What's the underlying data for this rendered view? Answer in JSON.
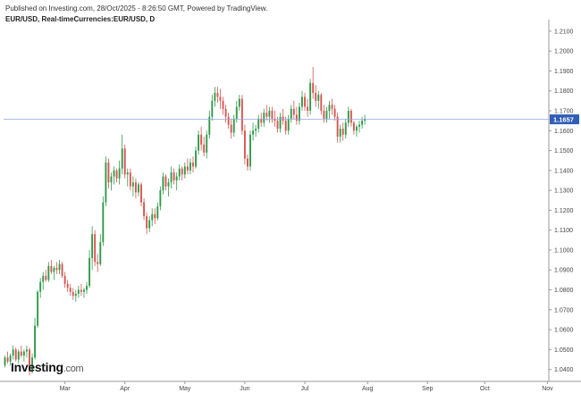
{
  "header": {
    "published": "Published on Investing.com, 28/Oct/2025 - 8:26:50 GMT, Powered by TradingView.",
    "symbol": "EUR/USD, Real-timeCurrencies:EUR/USD, D"
  },
  "logo": {
    "main": "Investing",
    "suffix": ".com"
  },
  "colors": {
    "up": "#2e9a4a",
    "down": "#d9534f",
    "price_line": "#8fa8d8",
    "price_tag": "#2f5db8",
    "axis": "#999999"
  },
  "chart_data": {
    "type": "candlestick",
    "y_ticks": [
      "1.2100",
      "1.2000",
      "1.1900",
      "1.1800",
      "1.1700",
      "1.1600",
      "1.1500",
      "1.1400",
      "1.1300",
      "1.1200",
      "1.1100",
      "1.1000",
      "1.0900",
      "1.0800",
      "1.0700",
      "1.0600",
      "1.0500",
      "1.0400"
    ],
    "ylim": [
      1.034,
      1.214
    ],
    "x_ticks": [
      "Mar",
      "Apr",
      "May",
      "Jun",
      "Jul",
      "Aug",
      "Sep",
      "Oct",
      "Nov"
    ],
    "x_tick_index": [
      22,
      44,
      66,
      88,
      110,
      133,
      155,
      176,
      199
    ],
    "current_price": "1.1657",
    "current_value": 1.1657,
    "candles": [
      [
        1.042,
        1.047,
        1.041,
        1.046
      ],
      [
        1.046,
        1.049,
        1.043,
        1.044
      ],
      [
        1.044,
        1.048,
        1.042,
        1.047
      ],
      [
        1.047,
        1.052,
        1.045,
        1.05
      ],
      [
        1.05,
        1.051,
        1.044,
        1.045
      ],
      [
        1.045,
        1.05,
        1.043,
        1.049
      ],
      [
        1.049,
        1.052,
        1.046,
        1.047
      ],
      [
        1.047,
        1.05,
        1.044,
        1.049
      ],
      [
        1.049,
        1.052,
        1.046,
        1.05
      ],
      [
        1.05,
        1.051,
        1.037,
        1.039
      ],
      [
        1.039,
        1.048,
        1.038,
        1.046
      ],
      [
        1.046,
        1.066,
        1.045,
        1.062
      ],
      [
        1.062,
        1.08,
        1.061,
        1.079
      ],
      [
        1.079,
        1.086,
        1.076,
        1.084
      ],
      [
        1.084,
        1.089,
        1.08,
        1.087
      ],
      [
        1.087,
        1.09,
        1.084,
        1.085
      ],
      [
        1.085,
        1.094,
        1.084,
        1.092
      ],
      [
        1.092,
        1.095,
        1.088,
        1.089
      ],
      [
        1.089,
        1.092,
        1.085,
        1.091
      ],
      [
        1.091,
        1.094,
        1.088,
        1.09
      ],
      [
        1.09,
        1.095,
        1.088,
        1.093
      ],
      [
        1.093,
        1.094,
        1.086,
        1.087
      ],
      [
        1.087,
        1.089,
        1.081,
        1.083
      ],
      [
        1.083,
        1.085,
        1.079,
        1.081
      ],
      [
        1.081,
        1.083,
        1.077,
        1.079
      ],
      [
        1.079,
        1.081,
        1.075,
        1.077
      ],
      [
        1.077,
        1.08,
        1.074,
        1.078
      ],
      [
        1.078,
        1.082,
        1.076,
        1.08
      ],
      [
        1.08,
        1.083,
        1.077,
        1.079
      ],
      [
        1.079,
        1.081,
        1.076,
        1.08
      ],
      [
        1.08,
        1.084,
        1.078,
        1.082
      ],
      [
        1.082,
        1.1,
        1.081,
        1.096
      ],
      [
        1.096,
        1.112,
        1.09,
        1.108
      ],
      [
        1.108,
        1.11,
        1.092,
        1.094
      ],
      [
        1.094,
        1.098,
        1.089,
        1.093
      ],
      [
        1.093,
        1.108,
        1.092,
        1.104
      ],
      [
        1.104,
        1.127,
        1.102,
        1.124
      ],
      [
        1.124,
        1.147,
        1.122,
        1.144
      ],
      [
        1.144,
        1.146,
        1.131,
        1.134
      ],
      [
        1.134,
        1.139,
        1.13,
        1.137
      ],
      [
        1.137,
        1.142,
        1.133,
        1.14
      ],
      [
        1.14,
        1.141,
        1.134,
        1.136
      ],
      [
        1.136,
        1.145,
        1.133,
        1.141
      ],
      [
        1.141,
        1.158,
        1.138,
        1.151
      ],
      [
        1.151,
        1.153,
        1.136,
        1.138
      ],
      [
        1.138,
        1.141,
        1.132,
        1.139
      ],
      [
        1.139,
        1.141,
        1.13,
        1.132
      ],
      [
        1.132,
        1.137,
        1.127,
        1.134
      ],
      [
        1.134,
        1.136,
        1.126,
        1.129
      ],
      [
        1.129,
        1.134,
        1.127,
        1.133
      ],
      [
        1.133,
        1.134,
        1.122,
        1.124
      ],
      [
        1.124,
        1.126,
        1.115,
        1.117
      ],
      [
        1.117,
        1.119,
        1.108,
        1.111
      ],
      [
        1.111,
        1.117,
        1.109,
        1.115
      ],
      [
        1.115,
        1.121,
        1.112,
        1.118
      ],
      [
        1.118,
        1.121,
        1.113,
        1.116
      ],
      [
        1.116,
        1.124,
        1.115,
        1.122
      ],
      [
        1.122,
        1.132,
        1.12,
        1.13
      ],
      [
        1.13,
        1.139,
        1.128,
        1.137
      ],
      [
        1.137,
        1.138,
        1.13,
        1.132
      ],
      [
        1.132,
        1.136,
        1.127,
        1.134
      ],
      [
        1.134,
        1.142,
        1.131,
        1.139
      ],
      [
        1.139,
        1.141,
        1.133,
        1.135
      ],
      [
        1.135,
        1.139,
        1.13,
        1.137
      ],
      [
        1.137,
        1.143,
        1.135,
        1.141
      ],
      [
        1.141,
        1.142,
        1.135,
        1.138
      ],
      [
        1.138,
        1.144,
        1.136,
        1.142
      ],
      [
        1.142,
        1.146,
        1.138,
        1.14
      ],
      [
        1.14,
        1.146,
        1.138,
        1.144
      ],
      [
        1.144,
        1.147,
        1.139,
        1.142
      ],
      [
        1.142,
        1.152,
        1.141,
        1.15
      ],
      [
        1.15,
        1.16,
        1.148,
        1.158
      ],
      [
        1.158,
        1.162,
        1.15,
        1.153
      ],
      [
        1.153,
        1.157,
        1.147,
        1.149
      ],
      [
        1.149,
        1.16,
        1.146,
        1.158
      ],
      [
        1.158,
        1.17,
        1.156,
        1.167
      ],
      [
        1.167,
        1.178,
        1.165,
        1.175
      ],
      [
        1.175,
        1.182,
        1.172,
        1.179
      ],
      [
        1.179,
        1.182,
        1.174,
        1.177
      ],
      [
        1.177,
        1.181,
        1.171,
        1.175
      ],
      [
        1.175,
        1.177,
        1.168,
        1.171
      ],
      [
        1.171,
        1.173,
        1.164,
        1.167
      ],
      [
        1.167,
        1.169,
        1.161,
        1.163
      ],
      [
        1.163,
        1.166,
        1.156,
        1.159
      ],
      [
        1.159,
        1.168,
        1.157,
        1.166
      ],
      [
        1.166,
        1.175,
        1.164,
        1.172
      ],
      [
        1.172,
        1.178,
        1.17,
        1.176
      ],
      [
        1.176,
        1.178,
        1.158,
        1.16
      ],
      [
        1.16,
        1.163,
        1.143,
        1.146
      ],
      [
        1.146,
        1.148,
        1.14,
        1.142
      ],
      [
        1.142,
        1.16,
        1.14,
        1.158
      ],
      [
        1.158,
        1.164,
        1.155,
        1.16
      ],
      [
        1.16,
        1.163,
        1.157,
        1.161
      ],
      [
        1.161,
        1.168,
        1.159,
        1.166
      ],
      [
        1.166,
        1.169,
        1.162,
        1.164
      ],
      [
        1.164,
        1.171,
        1.162,
        1.169
      ],
      [
        1.169,
        1.173,
        1.165,
        1.167
      ],
      [
        1.167,
        1.172,
        1.164,
        1.17
      ],
      [
        1.17,
        1.172,
        1.164,
        1.166
      ],
      [
        1.166,
        1.17,
        1.162,
        1.165
      ],
      [
        1.165,
        1.167,
        1.159,
        1.161
      ],
      [
        1.161,
        1.169,
        1.159,
        1.167
      ],
      [
        1.167,
        1.171,
        1.163,
        1.165
      ],
      [
        1.165,
        1.167,
        1.158,
        1.16
      ],
      [
        1.16,
        1.168,
        1.158,
        1.166
      ],
      [
        1.166,
        1.173,
        1.164,
        1.171
      ],
      [
        1.171,
        1.175,
        1.166,
        1.168
      ],
      [
        1.168,
        1.172,
        1.163,
        1.165
      ],
      [
        1.165,
        1.174,
        1.163,
        1.172
      ],
      [
        1.172,
        1.18,
        1.17,
        1.177
      ],
      [
        1.177,
        1.179,
        1.17,
        1.172
      ],
      [
        1.172,
        1.176,
        1.167,
        1.17
      ],
      [
        1.17,
        1.186,
        1.168,
        1.184
      ],
      [
        1.184,
        1.192,
        1.176,
        1.179
      ],
      [
        1.179,
        1.183,
        1.172,
        1.175
      ],
      [
        1.175,
        1.18,
        1.171,
        1.178
      ],
      [
        1.178,
        1.179,
        1.168,
        1.17
      ],
      [
        1.17,
        1.173,
        1.164,
        1.166
      ],
      [
        1.166,
        1.172,
        1.164,
        1.17
      ],
      [
        1.17,
        1.175,
        1.166,
        1.173
      ],
      [
        1.173,
        1.176,
        1.168,
        1.171
      ],
      [
        1.171,
        1.173,
        1.165,
        1.167
      ],
      [
        1.167,
        1.169,
        1.154,
        1.157
      ],
      [
        1.157,
        1.163,
        1.154,
        1.161
      ],
      [
        1.161,
        1.164,
        1.155,
        1.158
      ],
      [
        1.158,
        1.166,
        1.156,
        1.164
      ],
      [
        1.164,
        1.172,
        1.162,
        1.17
      ],
      [
        1.17,
        1.171,
        1.162,
        1.164
      ],
      [
        1.164,
        1.165,
        1.158,
        1.16
      ],
      [
        1.16,
        1.163,
        1.157,
        1.162
      ],
      [
        1.162,
        1.165,
        1.159,
        1.163
      ],
      [
        1.163,
        1.167,
        1.161,
        1.165
      ],
      [
        1.165,
        1.168,
        1.163,
        1.166
      ]
    ]
  }
}
